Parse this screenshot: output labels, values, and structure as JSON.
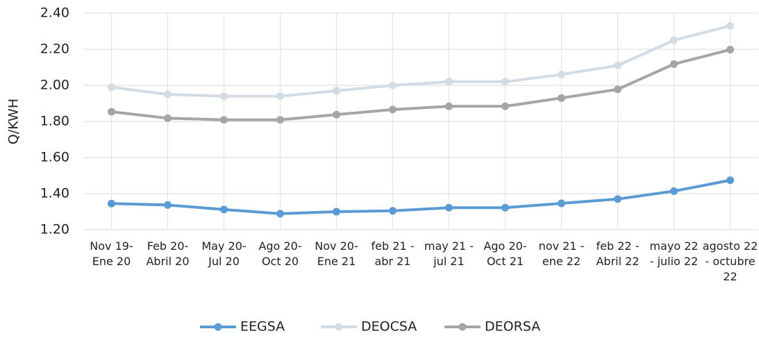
{
  "chart_data": {
    "type": "line",
    "ylabel": "Q/KWH",
    "categories": [
      "Nov 19- Ene 20",
      "Feb 20- Abril 20",
      "May 20- Jul 20",
      "Ago 20- Oct 20",
      "Nov 20- Ene 21",
      "feb 21 - abr 21",
      "may 21 - jul 21",
      "Ago 20- Oct 21",
      "nov 21 - ene 22",
      "feb 22 - Abril 22",
      "mayo 22 - julio 22",
      "agosto 22 - octubre 22"
    ],
    "series": [
      {
        "name": "EEGSA",
        "color": "#5b9bd5",
        "values": [
          1.345,
          1.337,
          1.312,
          1.289,
          1.3,
          1.305,
          1.322,
          1.322,
          1.346,
          1.37,
          1.414,
          1.474
        ]
      },
      {
        "name": "DEOCSA",
        "color": "#d3dbe3",
        "values": [
          1.99,
          1.95,
          1.94,
          1.94,
          1.97,
          2.0,
          2.02,
          2.02,
          2.06,
          2.11,
          2.25,
          2.33
        ]
      },
      {
        "name": "DEORSA",
        "color": "#a5a5a5",
        "values": [
          1.854,
          1.818,
          1.809,
          1.809,
          1.838,
          1.866,
          1.884,
          1.884,
          1.93,
          1.978,
          2.118,
          2.198
        ]
      }
    ],
    "ylim": [
      1.2,
      2.4
    ],
    "yticks": [
      {
        "value": 1.2,
        "label": "1.20"
      },
      {
        "value": 1.4,
        "label": "1.40"
      },
      {
        "value": 1.6,
        "label": "1.60"
      },
      {
        "value": 1.8,
        "label": "1.80"
      },
      {
        "value": 2.0,
        "label": "2.00"
      },
      {
        "value": 2.2,
        "label": "2.20"
      },
      {
        "value": 2.4,
        "label": "2.40"
      }
    ],
    "grid": true,
    "legend": "bottom"
  }
}
